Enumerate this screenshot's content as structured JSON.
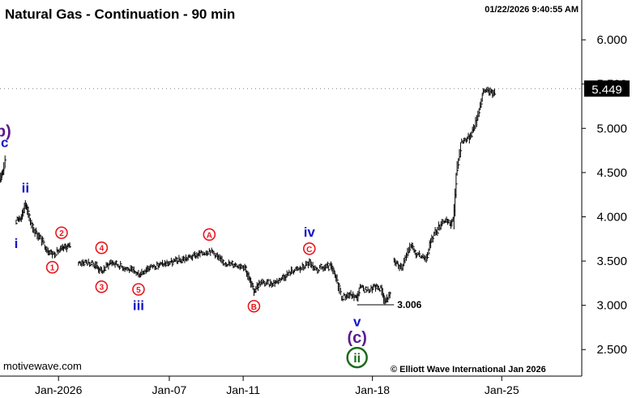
{
  "chart_data": {
    "type": "ohlc",
    "title": "Natural Gas - Continuation - 90 min",
    "timestamp": "01/22/2026 9:40:55 AM",
    "source_left": "motivewave.com",
    "copyright": "© Elliott Wave International Jan 2026",
    "xlabel": "",
    "ylabel": "",
    "ylim": [
      2.2,
      6.45
    ],
    "y_ticks": [
      "6.000",
      "5.500",
      "5.000",
      "4.500",
      "4.000",
      "3.500",
      "3.000",
      "2.500"
    ],
    "y_tick_values": [
      6.0,
      5.5,
      5.0,
      4.5,
      4.0,
      3.5,
      3.0,
      2.5
    ],
    "x_ticks": [
      "Jan-2026",
      "Jan-07",
      "Jan-11",
      "Jan-18",
      "Jan-25"
    ],
    "x_tick_dates": [
      "2026-01-01",
      "2026-01-07",
      "2026-01-11",
      "2026-01-18",
      "2026-01-25"
    ],
    "xlim": [
      "2025-12-28T20:00",
      "2026-01-29T08:00"
    ],
    "last_price": "5.449",
    "last_price_value": 5.449,
    "reference_level": {
      "label": "3.006",
      "value": 3.006
    },
    "series": [
      {
        "segments": [
          {
            "points": [
              [
                "2025-12-28T20:00",
                4.42
              ],
              [
                "2025-12-29T01:00",
                4.55
              ],
              [
                "2025-12-29T04:00",
                4.72
              ]
            ]
          },
          {
            "points": [
              [
                "2025-12-29T17:00",
                3.95
              ],
              [
                "2025-12-30T01:00",
                4.02
              ],
              [
                "2025-12-30T05:00",
                4.15
              ],
              [
                "2025-12-30T10:00",
                3.99
              ],
              [
                "2025-12-30T16:00",
                3.86
              ],
              [
                "2025-12-31T02:00",
                3.74
              ],
              [
                "2025-12-31T09:00",
                3.64
              ],
              [
                "2025-12-31T16:00",
                3.58
              ],
              [
                "2026-01-01T04:00",
                3.63
              ],
              [
                "2026-01-01T12:00",
                3.67
              ],
              [
                "2026-01-01T16:00",
                3.66
              ]
            ]
          },
          {
            "points": [
              [
                "2026-01-02T02:00",
                3.48
              ],
              [
                "2026-01-02T12:00",
                3.49
              ],
              [
                "2026-01-03T00:00",
                3.46
              ],
              [
                "2026-01-03T08:00",
                3.38
              ],
              [
                "2026-01-03T20:00",
                3.49
              ],
              [
                "2026-01-04T10:00",
                3.44
              ],
              [
                "2026-01-05T02:00",
                3.38
              ],
              [
                "2026-01-05T08:00",
                3.35
              ],
              [
                "2026-01-05T22:00",
                3.43
              ],
              [
                "2026-01-06T18:00",
                3.47
              ],
              [
                "2026-01-07T14:00",
                3.51
              ],
              [
                "2026-01-08T02:00",
                3.54
              ],
              [
                "2026-01-08T16:00",
                3.58
              ],
              [
                "2026-01-09T04:00",
                3.62
              ],
              [
                "2026-01-09T10:00",
                3.59
              ],
              [
                "2026-01-09T22:00",
                3.48
              ],
              [
                "2026-01-10T14:00",
                3.46
              ],
              [
                "2026-01-11T02:00",
                3.44
              ],
              [
                "2026-01-11T10:00",
                3.25
              ],
              [
                "2026-01-11T14:00",
                3.16
              ],
              [
                "2026-01-11T22:00",
                3.26
              ],
              [
                "2026-01-12T10:00",
                3.24
              ],
              [
                "2026-01-12T20:00",
                3.27
              ],
              [
                "2026-01-13T06:00",
                3.33
              ],
              [
                "2026-01-13T16:00",
                3.39
              ],
              [
                "2026-01-14T02:00",
                3.41
              ],
              [
                "2026-01-14T14:00",
                3.48
              ],
              [
                "2026-01-14T20:00",
                3.4
              ],
              [
                "2026-01-15T08:00",
                3.42
              ],
              [
                "2026-01-15T18:00",
                3.44
              ],
              [
                "2026-01-16T02:00",
                3.28
              ],
              [
                "2026-01-16T08:00",
                3.1
              ],
              [
                "2026-01-16T20:00",
                3.12
              ],
              [
                "2026-01-17T04:00",
                3.08
              ],
              [
                "2026-01-17T08:00",
                3.2
              ],
              [
                "2026-01-17T18:00",
                3.17
              ],
              [
                "2026-01-18T04:00",
                3.21
              ],
              [
                "2026-01-18T12:00",
                3.19
              ],
              [
                "2026-01-18T16:00",
                3.05
              ],
              [
                "2026-01-19T00:00",
                3.12
              ]
            ]
          },
          {
            "points": [
              [
                "2026-01-19T04:00",
                3.5
              ],
              [
                "2026-01-19T14:00",
                3.42
              ],
              [
                "2026-01-20T02:00",
                3.68
              ],
              [
                "2026-01-20T10:00",
                3.56
              ],
              [
                "2026-01-20T22:00",
                3.55
              ],
              [
                "2026-01-21T08:00",
                3.8
              ],
              [
                "2026-01-21T20:00",
                3.96
              ],
              [
                "2026-01-22T06:00",
                3.92
              ],
              [
                "2026-01-22T10:00",
                3.98
              ],
              [
                "2026-01-22T14:00",
                4.55
              ],
              [
                "2026-01-22T20:00",
                4.85
              ],
              [
                "2026-01-23T06:00",
                4.9
              ],
              [
                "2026-01-23T14:00",
                5.05
              ],
              [
                "2026-01-23T20:00",
                5.25
              ],
              [
                "2026-01-24T00:00",
                5.4
              ],
              [
                "2026-01-24T06:00",
                5.45
              ],
              [
                "2026-01-24T12:00",
                5.38
              ],
              [
                "2026-01-24T16:00",
                5.45
              ]
            ]
          }
        ]
      }
    ],
    "wave_labels": [
      {
        "text": "(b)",
        "color": "#5b1a8c",
        "style": "plain",
        "size": "large",
        "date": "2025-12-28T21:00",
        "price": 4.97
      },
      {
        "text": "c",
        "color": "#1515c8",
        "style": "plain",
        "size": "medium",
        "date": "2025-12-29T02:00",
        "price": 4.84
      },
      {
        "text": "ii",
        "color": "#1515c8",
        "style": "plain",
        "size": "medium",
        "date": "2025-12-30T05:00",
        "price": 4.33
      },
      {
        "text": "i",
        "color": "#1515c8",
        "style": "plain",
        "size": "medium",
        "date": "2025-12-29T17:00",
        "price": 3.7
      },
      {
        "text": "2",
        "color": "#e8151d",
        "style": "circle",
        "size": "small",
        "date": "2026-01-01T04:00",
        "price": 3.82
      },
      {
        "text": "1",
        "color": "#e8151d",
        "style": "circle",
        "size": "small",
        "date": "2025-12-31T16:00",
        "price": 3.43
      },
      {
        "text": "4",
        "color": "#e8151d",
        "style": "circle",
        "size": "small",
        "date": "2026-01-03T08:00",
        "price": 3.65
      },
      {
        "text": "3",
        "color": "#e8151d",
        "style": "circle",
        "size": "small",
        "date": "2026-01-03T08:00",
        "price": 3.21
      },
      {
        "text": "5",
        "color": "#e8151d",
        "style": "circle",
        "size": "small",
        "date": "2026-01-05T08:00",
        "price": 3.18
      },
      {
        "text": "iii",
        "color": "#1515c8",
        "style": "plain",
        "size": "medium",
        "date": "2026-01-05T08:00",
        "price": 3.0
      },
      {
        "text": "A",
        "color": "#e8151d",
        "style": "circle",
        "size": "small",
        "date": "2026-01-09T04:00",
        "price": 3.8
      },
      {
        "text": "B",
        "color": "#e8151d",
        "style": "circle",
        "size": "small",
        "date": "2026-01-11T14:00",
        "price": 2.99
      },
      {
        "text": "iv",
        "color": "#1515c8",
        "style": "plain",
        "size": "medium",
        "date": "2026-01-14T14:00",
        "price": 3.83
      },
      {
        "text": "C",
        "color": "#e8151d",
        "style": "circle",
        "size": "small",
        "date": "2026-01-14T14:00",
        "price": 3.64
      },
      {
        "text": "v",
        "color": "#1515c8",
        "style": "plain",
        "size": "medium",
        "date": "2026-01-17T04:00",
        "price": 2.82
      },
      {
        "text": "(c)",
        "color": "#5b1a8c",
        "style": "plain",
        "size": "large",
        "date": "2026-01-17T04:00",
        "price": 2.64
      },
      {
        "text": "ii",
        "color": "#1a6b1a",
        "style": "circle",
        "size": "large",
        "date": "2026-01-17T04:00",
        "price": 2.41
      }
    ],
    "grid": false,
    "axis_side": "right",
    "colors": {
      "bars": "#000000",
      "background": "#ffffff",
      "axis": "#000000"
    }
  }
}
